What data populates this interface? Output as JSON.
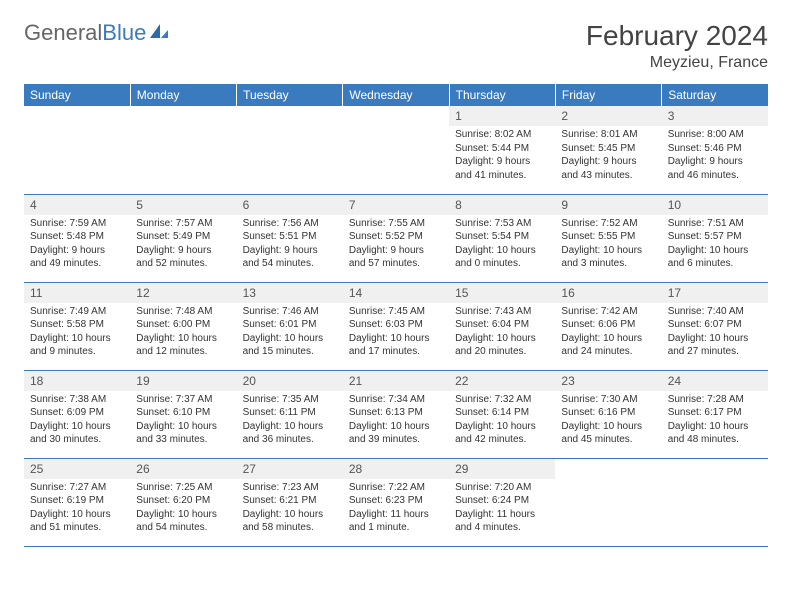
{
  "logo": {
    "text_gray": "General",
    "text_blue": "Blue"
  },
  "title": "February 2024",
  "location": "Meyzieu, France",
  "colors": {
    "header_bg": "#3a7bbf",
    "header_text": "#ffffff",
    "daynum_bg": "#f0f0f0",
    "border": "#3a7bbf",
    "body_text": "#333333"
  },
  "day_headers": [
    "Sunday",
    "Monday",
    "Tuesday",
    "Wednesday",
    "Thursday",
    "Friday",
    "Saturday"
  ],
  "weeks": [
    [
      {
        "empty": true
      },
      {
        "empty": true
      },
      {
        "empty": true
      },
      {
        "empty": true
      },
      {
        "num": "1",
        "sunrise": "Sunrise: 8:02 AM",
        "sunset": "Sunset: 5:44 PM",
        "daylight": "Daylight: 9 hours and 41 minutes."
      },
      {
        "num": "2",
        "sunrise": "Sunrise: 8:01 AM",
        "sunset": "Sunset: 5:45 PM",
        "daylight": "Daylight: 9 hours and 43 minutes."
      },
      {
        "num": "3",
        "sunrise": "Sunrise: 8:00 AM",
        "sunset": "Sunset: 5:46 PM",
        "daylight": "Daylight: 9 hours and 46 minutes."
      }
    ],
    [
      {
        "num": "4",
        "sunrise": "Sunrise: 7:59 AM",
        "sunset": "Sunset: 5:48 PM",
        "daylight": "Daylight: 9 hours and 49 minutes."
      },
      {
        "num": "5",
        "sunrise": "Sunrise: 7:57 AM",
        "sunset": "Sunset: 5:49 PM",
        "daylight": "Daylight: 9 hours and 52 minutes."
      },
      {
        "num": "6",
        "sunrise": "Sunrise: 7:56 AM",
        "sunset": "Sunset: 5:51 PM",
        "daylight": "Daylight: 9 hours and 54 minutes."
      },
      {
        "num": "7",
        "sunrise": "Sunrise: 7:55 AM",
        "sunset": "Sunset: 5:52 PM",
        "daylight": "Daylight: 9 hours and 57 minutes."
      },
      {
        "num": "8",
        "sunrise": "Sunrise: 7:53 AM",
        "sunset": "Sunset: 5:54 PM",
        "daylight": "Daylight: 10 hours and 0 minutes."
      },
      {
        "num": "9",
        "sunrise": "Sunrise: 7:52 AM",
        "sunset": "Sunset: 5:55 PM",
        "daylight": "Daylight: 10 hours and 3 minutes."
      },
      {
        "num": "10",
        "sunrise": "Sunrise: 7:51 AM",
        "sunset": "Sunset: 5:57 PM",
        "daylight": "Daylight: 10 hours and 6 minutes."
      }
    ],
    [
      {
        "num": "11",
        "sunrise": "Sunrise: 7:49 AM",
        "sunset": "Sunset: 5:58 PM",
        "daylight": "Daylight: 10 hours and 9 minutes."
      },
      {
        "num": "12",
        "sunrise": "Sunrise: 7:48 AM",
        "sunset": "Sunset: 6:00 PM",
        "daylight": "Daylight: 10 hours and 12 minutes."
      },
      {
        "num": "13",
        "sunrise": "Sunrise: 7:46 AM",
        "sunset": "Sunset: 6:01 PM",
        "daylight": "Daylight: 10 hours and 15 minutes."
      },
      {
        "num": "14",
        "sunrise": "Sunrise: 7:45 AM",
        "sunset": "Sunset: 6:03 PM",
        "daylight": "Daylight: 10 hours and 17 minutes."
      },
      {
        "num": "15",
        "sunrise": "Sunrise: 7:43 AM",
        "sunset": "Sunset: 6:04 PM",
        "daylight": "Daylight: 10 hours and 20 minutes."
      },
      {
        "num": "16",
        "sunrise": "Sunrise: 7:42 AM",
        "sunset": "Sunset: 6:06 PM",
        "daylight": "Daylight: 10 hours and 24 minutes."
      },
      {
        "num": "17",
        "sunrise": "Sunrise: 7:40 AM",
        "sunset": "Sunset: 6:07 PM",
        "daylight": "Daylight: 10 hours and 27 minutes."
      }
    ],
    [
      {
        "num": "18",
        "sunrise": "Sunrise: 7:38 AM",
        "sunset": "Sunset: 6:09 PM",
        "daylight": "Daylight: 10 hours and 30 minutes."
      },
      {
        "num": "19",
        "sunrise": "Sunrise: 7:37 AM",
        "sunset": "Sunset: 6:10 PM",
        "daylight": "Daylight: 10 hours and 33 minutes."
      },
      {
        "num": "20",
        "sunrise": "Sunrise: 7:35 AM",
        "sunset": "Sunset: 6:11 PM",
        "daylight": "Daylight: 10 hours and 36 minutes."
      },
      {
        "num": "21",
        "sunrise": "Sunrise: 7:34 AM",
        "sunset": "Sunset: 6:13 PM",
        "daylight": "Daylight: 10 hours and 39 minutes."
      },
      {
        "num": "22",
        "sunrise": "Sunrise: 7:32 AM",
        "sunset": "Sunset: 6:14 PM",
        "daylight": "Daylight: 10 hours and 42 minutes."
      },
      {
        "num": "23",
        "sunrise": "Sunrise: 7:30 AM",
        "sunset": "Sunset: 6:16 PM",
        "daylight": "Daylight: 10 hours and 45 minutes."
      },
      {
        "num": "24",
        "sunrise": "Sunrise: 7:28 AM",
        "sunset": "Sunset: 6:17 PM",
        "daylight": "Daylight: 10 hours and 48 minutes."
      }
    ],
    [
      {
        "num": "25",
        "sunrise": "Sunrise: 7:27 AM",
        "sunset": "Sunset: 6:19 PM",
        "daylight": "Daylight: 10 hours and 51 minutes."
      },
      {
        "num": "26",
        "sunrise": "Sunrise: 7:25 AM",
        "sunset": "Sunset: 6:20 PM",
        "daylight": "Daylight: 10 hours and 54 minutes."
      },
      {
        "num": "27",
        "sunrise": "Sunrise: 7:23 AM",
        "sunset": "Sunset: 6:21 PM",
        "daylight": "Daylight: 10 hours and 58 minutes."
      },
      {
        "num": "28",
        "sunrise": "Sunrise: 7:22 AM",
        "sunset": "Sunset: 6:23 PM",
        "daylight": "Daylight: 11 hours and 1 minute."
      },
      {
        "num": "29",
        "sunrise": "Sunrise: 7:20 AM",
        "sunset": "Sunset: 6:24 PM",
        "daylight": "Daylight: 11 hours and 4 minutes."
      },
      {
        "empty": true
      },
      {
        "empty": true
      }
    ]
  ]
}
